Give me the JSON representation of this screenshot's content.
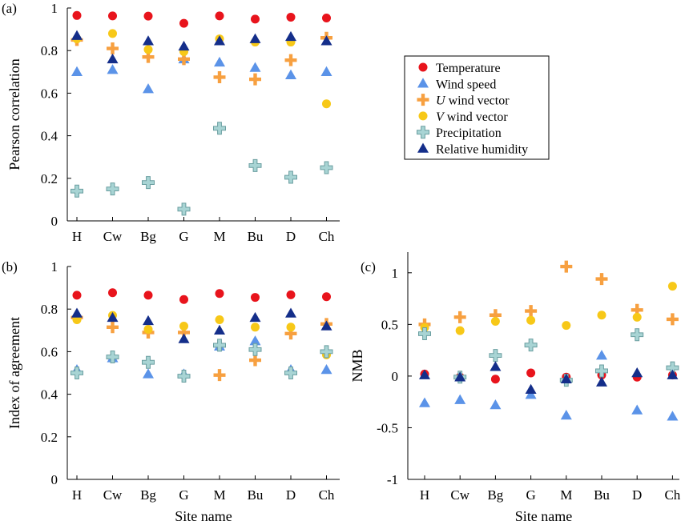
{
  "chart_data": [
    {
      "panel_label": "(a)",
      "type": "scatter",
      "xlabel": "",
      "ylabel": "Pearson correlation",
      "categories": [
        "H",
        "Cw",
        "Bg",
        "G",
        "M",
        "Bu",
        "D",
        "Ch"
      ],
      "ylim": [
        0,
        1
      ],
      "yticks": [
        "0",
        "0.2",
        "0.4",
        "0.6",
        "0.8",
        "1"
      ],
      "yticks_values": [
        0,
        0.2,
        0.4,
        0.6,
        0.8,
        1
      ],
      "grid": false,
      "legend": "right",
      "series": [
        {
          "name": "Temperature",
          "values": [
            0.965,
            0.963,
            0.962,
            0.928,
            0.963,
            0.948,
            0.957,
            0.953
          ]
        },
        {
          "name": "Wind speed",
          "values": [
            0.7,
            0.71,
            0.62,
            0.76,
            0.745,
            0.72,
            0.685,
            0.7
          ]
        },
        {
          "name": "U wind vector",
          "values": [
            0.85,
            0.81,
            0.77,
            0.76,
            0.675,
            0.665,
            0.755,
            0.86
          ]
        },
        {
          "name": "V wind vector",
          "values": [
            0.855,
            0.88,
            0.805,
            0.795,
            0.855,
            0.84,
            0.84,
            0.55
          ]
        },
        {
          "name": "Precipitation",
          "values": [
            0.14,
            0.15,
            0.18,
            0.055,
            0.435,
            0.26,
            0.205,
            0.25
          ]
        },
        {
          "name": "Relative humidity",
          "values": [
            0.87,
            0.76,
            0.845,
            0.82,
            0.845,
            0.855,
            0.865,
            0.845
          ]
        }
      ]
    },
    {
      "panel_label": "(b)",
      "type": "scatter",
      "xlabel": "Site name",
      "ylabel": "Index of agreement",
      "categories": [
        "H",
        "Cw",
        "Bg",
        "G",
        "M",
        "Bu",
        "D",
        "Ch"
      ],
      "ylim": [
        0,
        1
      ],
      "yticks": [
        "0",
        "0.2",
        "0.4",
        "0.6",
        "0.8",
        "1"
      ],
      "yticks_values": [
        0,
        0.2,
        0.4,
        0.6,
        0.8,
        1
      ],
      "grid": false,
      "series": [
        {
          "name": "Temperature",
          "values": [
            0.865,
            0.877,
            0.865,
            0.845,
            0.873,
            0.855,
            0.867,
            0.858
          ]
        },
        {
          "name": "Wind speed",
          "values": [
            0.515,
            0.57,
            0.495,
            0.495,
            0.625,
            0.65,
            0.515,
            0.515
          ]
        },
        {
          "name": "U wind vector",
          "values": [
            0.76,
            0.715,
            0.69,
            0.69,
            0.49,
            0.56,
            0.685,
            0.73
          ]
        },
        {
          "name": "V wind vector",
          "values": [
            0.75,
            0.77,
            0.705,
            0.72,
            0.75,
            0.715,
            0.715,
            0.585
          ]
        },
        {
          "name": "Precipitation",
          "values": [
            0.5,
            0.575,
            0.55,
            0.485,
            0.63,
            0.61,
            0.5,
            0.6
          ]
        },
        {
          "name": "Relative humidity",
          "values": [
            0.78,
            0.76,
            0.745,
            0.66,
            0.7,
            0.76,
            0.78,
            0.72
          ]
        }
      ]
    },
    {
      "panel_label": "(c)",
      "type": "scatter",
      "xlabel": "Site name",
      "ylabel": "NMB",
      "categories": [
        "H",
        "Cw",
        "Bg",
        "G",
        "M",
        "Bu",
        "D",
        "Ch"
      ],
      "ylim": [
        -1,
        1.2
      ],
      "yticks": [
        "-1",
        "-0.5",
        "0",
        "0.5",
        "1"
      ],
      "yticks_values": [
        -1,
        -0.5,
        0,
        0.5,
        1
      ],
      "grid": false,
      "series": [
        {
          "name": "Temperature",
          "values": [
            0.02,
            -0.01,
            -0.03,
            0.03,
            -0.01,
            0.01,
            -0.01,
            0.01
          ]
        },
        {
          "name": "Wind speed",
          "values": [
            -0.26,
            -0.23,
            -0.28,
            -0.18,
            -0.38,
            0.2,
            -0.33,
            -0.39
          ]
        },
        {
          "name": "U wind vector",
          "values": [
            0.5,
            0.57,
            0.59,
            0.63,
            1.06,
            0.94,
            0.64,
            0.55
          ]
        },
        {
          "name": "V wind vector",
          "values": [
            0.47,
            0.44,
            0.53,
            0.54,
            0.49,
            0.59,
            0.57,
            0.87
          ]
        },
        {
          "name": "Precipitation",
          "values": [
            0.41,
            -0.01,
            0.2,
            0.3,
            -0.04,
            0.05,
            0.4,
            0.08
          ]
        },
        {
          "name": "Relative humidity",
          "values": [
            0.01,
            -0.01,
            0.09,
            -0.13,
            -0.03,
            -0.06,
            0.03,
            0.01
          ]
        }
      ]
    }
  ],
  "legend": {
    "entries": [
      {
        "label": "Temperature",
        "italic_prefix": "",
        "marker": "circle",
        "color": "#e8141c"
      },
      {
        "label": "Wind speed",
        "italic_prefix": "",
        "marker": "triangle",
        "color": "#5b93e8"
      },
      {
        "label": " wind vector",
        "italic_prefix": "U",
        "marker": "plus",
        "color": "#f7a040"
      },
      {
        "label": " wind vector",
        "italic_prefix": "V",
        "marker": "circle",
        "color": "#f7c818"
      },
      {
        "label": "Precipitation",
        "italic_prefix": "",
        "marker": "plus-outline",
        "color": "#a8d4d4"
      },
      {
        "label": "Relative humidity",
        "italic_prefix": "",
        "marker": "triangle",
        "color": "#142e8a"
      }
    ]
  },
  "colors": {
    "temperature": "#e8141c",
    "wind_speed": "#5b93e8",
    "u_wind": "#f7a040",
    "v_wind": "#f7c818",
    "precipitation": "#a8d4d4",
    "precipitation_edge": "#6a9ea0",
    "relative_humidity": "#142e8a"
  }
}
